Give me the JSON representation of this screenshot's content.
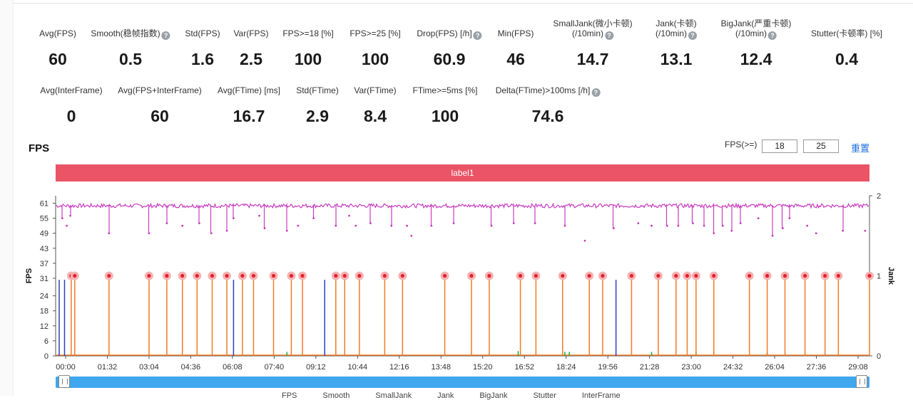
{
  "metrics_row1": [
    {
      "label": "Avg(FPS)",
      "value": "60",
      "help": false
    },
    {
      "label": "Smooth(稳帧指数)",
      "value": "0.5",
      "help": true
    },
    {
      "label": "Std(FPS)",
      "value": "1.6",
      "help": false
    },
    {
      "label": "Var(FPS)",
      "value": "2.5",
      "help": false
    },
    {
      "label": "FPS>=18 [%]",
      "value": "100",
      "help": false
    },
    {
      "label": "FPS>=25 [%]",
      "value": "100",
      "help": false
    },
    {
      "label": "Drop(FPS) [/h]",
      "value": "60.9",
      "help": true
    },
    {
      "label": "Min(FPS)",
      "value": "46",
      "help": false
    },
    {
      "label": "SmallJank(微小卡顿)",
      "label2": "(/10min)",
      "value": "14.7",
      "help": true
    },
    {
      "label": "Jank(卡顿)",
      "label2": "(/10min)",
      "value": "13.1",
      "help": true
    },
    {
      "label": "BigJank(严重卡顿)",
      "label2": "(/10min)",
      "value": "12.4",
      "help": true
    },
    {
      "label": "Stutter(卡顿率) [%]",
      "value": "0.4",
      "help": false
    }
  ],
  "metrics_row2": [
    {
      "label": "Avg(InterFrame)",
      "value": "0",
      "help": false
    },
    {
      "label": "Avg(FPS+InterFrame)",
      "value": "60",
      "help": false
    },
    {
      "label": "Avg(FTime) [ms]",
      "value": "16.7",
      "help": false
    },
    {
      "label": "Std(FTime)",
      "value": "2.9",
      "help": false
    },
    {
      "label": "Var(FTime)",
      "value": "8.4",
      "help": false
    },
    {
      "label": "FTime>=5ms [%]",
      "value": "100",
      "help": false
    },
    {
      "label": "Delta(FTime)>100ms [/h]",
      "value": "74.6",
      "help": true
    }
  ],
  "section_title": "FPS",
  "threshold_label": "FPS(>=)",
  "threshold_low": "18",
  "threshold_high": "25",
  "reset_label": "重置",
  "label_bar": "label1",
  "legend_items": [
    "FPS",
    "Smooth",
    "SmallJank",
    "Jank",
    "BigJank",
    "Stutter",
    "InterFrame"
  ],
  "chart_data": {
    "type": "line",
    "ylabel": "FPS",
    "y2label": "Jank",
    "y_ticks": [
      "0",
      "6",
      "12",
      "18",
      "24",
      "31",
      "37",
      "43",
      "49",
      "55",
      "61"
    ],
    "y_tick_values": [
      0,
      6,
      12,
      18,
      24,
      31,
      37,
      43,
      49,
      55,
      61
    ],
    "y2_ticks": [
      "0",
      "1",
      "2"
    ],
    "y2_tick_values": [
      0,
      1,
      2
    ],
    "x_ticks": [
      "00:00",
      "01:32",
      "03:04",
      "04:36",
      "06:08",
      "07:40",
      "09:12",
      "10:44",
      "12:16",
      "13:48",
      "15:20",
      "16:52",
      "18:24",
      "19:56",
      "21:28",
      "23:00",
      "24:32",
      "26:04",
      "27:36",
      "29:08"
    ],
    "x_range_seconds": [
      0,
      1830
    ],
    "fps_baseline": 60,
    "fps_dips": [
      [
        15,
        55
      ],
      [
        25,
        52
      ],
      [
        33,
        56
      ],
      [
        120,
        49
      ],
      [
        210,
        49
      ],
      [
        250,
        53
      ],
      [
        285,
        52
      ],
      [
        323,
        53
      ],
      [
        350,
        49
      ],
      [
        385,
        50
      ],
      [
        400,
        55
      ],
      [
        458,
        56
      ],
      [
        470,
        51
      ],
      [
        520,
        50
      ],
      [
        545,
        52
      ],
      [
        580,
        55
      ],
      [
        630,
        52
      ],
      [
        660,
        56
      ],
      [
        675,
        52
      ],
      [
        708,
        53
      ],
      [
        755,
        52
      ],
      [
        790,
        52
      ],
      [
        800,
        48
      ],
      [
        845,
        52
      ],
      [
        895,
        53
      ],
      [
        980,
        52
      ],
      [
        1030,
        53
      ],
      [
        1078,
        53
      ],
      [
        1145,
        52
      ],
      [
        1190,
        46
      ],
      [
        1255,
        51
      ],
      [
        1310,
        53
      ],
      [
        1340,
        52
      ],
      [
        1375,
        52
      ],
      [
        1400,
        52
      ],
      [
        1433,
        53
      ],
      [
        1458,
        52
      ],
      [
        1480,
        49
      ],
      [
        1500,
        52
      ],
      [
        1520,
        50
      ],
      [
        1540,
        53
      ],
      [
        1580,
        55
      ],
      [
        1612,
        48
      ],
      [
        1635,
        51
      ],
      [
        1650,
        55
      ],
      [
        1690,
        52
      ],
      [
        1710,
        49
      ],
      [
        1770,
        50
      ],
      [
        1820,
        50
      ]
    ],
    "jank_events": [
      35,
      43,
      120,
      210,
      250,
      285,
      318,
      352,
      385,
      420,
      445,
      490,
      530,
      555,
      630,
      650,
      683,
      740,
      780,
      875,
      935,
      975,
      1045,
      1080,
      1140,
      1200,
      1230,
      1295,
      1355,
      1395,
      1420,
      1440,
      1480,
      1560,
      1600,
      1640,
      1685,
      1730,
      1760,
      1830
    ],
    "blue_spikes": [
      [
        8,
        0.95
      ],
      [
        20,
        0.95
      ],
      [
        400,
        0.95
      ],
      [
        605,
        0.95
      ],
      [
        1260,
        0.95
      ]
    ],
    "green_spikes": [
      [
        520,
        0.05
      ],
      [
        1145,
        0.05
      ],
      [
        1155,
        0.05
      ],
      [
        1040,
        0.06
      ],
      [
        1340,
        0.05
      ],
      [
        1440,
        0.05
      ],
      [
        1600,
        0.05
      ]
    ]
  }
}
